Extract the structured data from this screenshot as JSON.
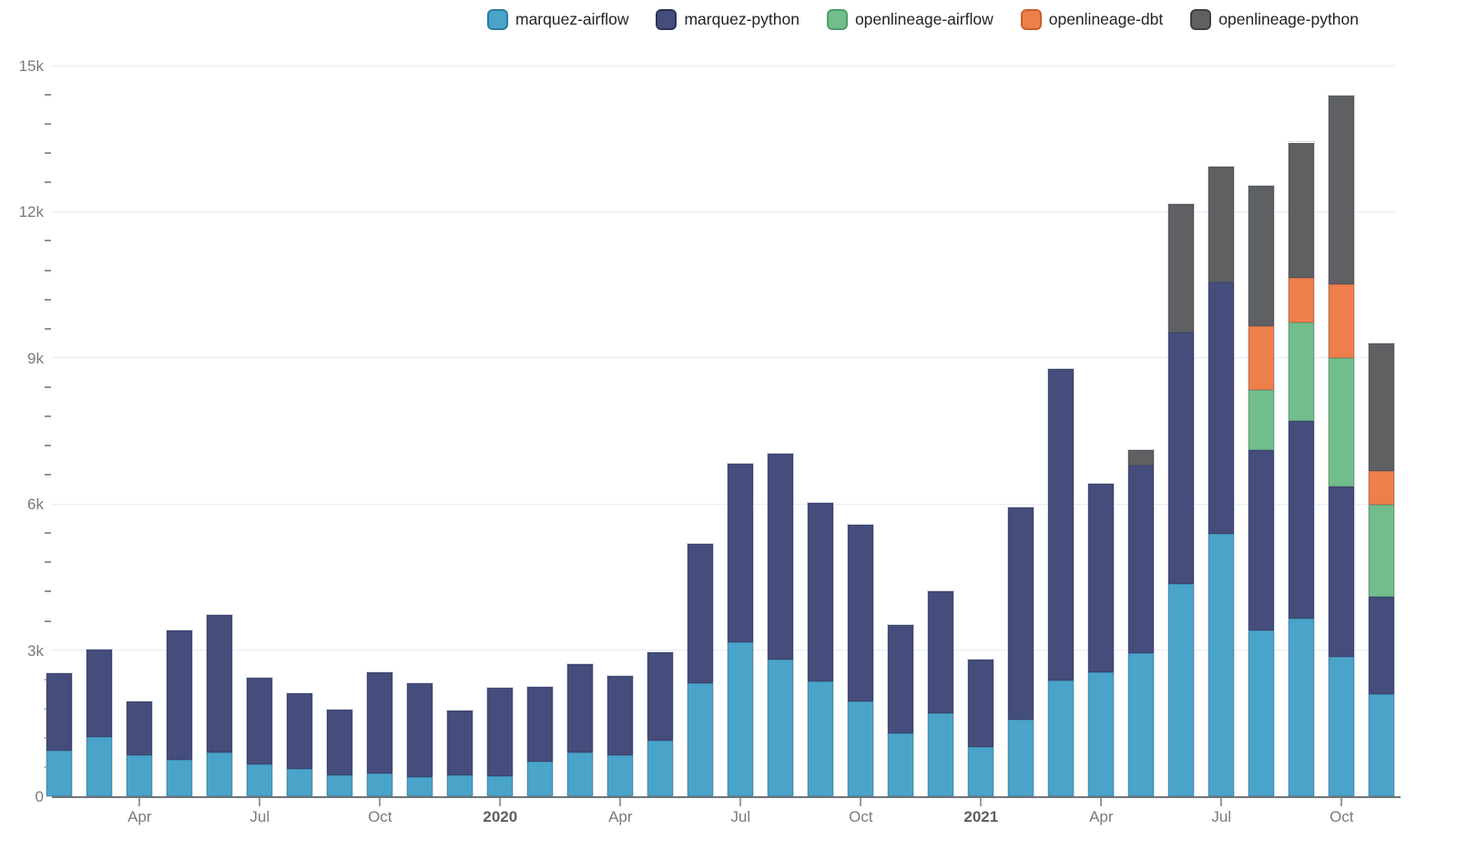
{
  "chart_data": {
    "type": "bar",
    "variant": "stacked-monthly",
    "title": "",
    "ylabel": "",
    "xlabel": "",
    "ylim": [
      0,
      15000
    ],
    "grid": "horizontal-major",
    "minor_tick_step": 600,
    "legend_position": "top-center",
    "months": [
      "2019-02",
      "2019-03",
      "2019-04",
      "2019-05",
      "2019-06",
      "2019-07",
      "2019-08",
      "2019-09",
      "2019-10",
      "2019-11",
      "2019-12",
      "2020-01",
      "2020-02",
      "2020-03",
      "2020-04",
      "2020-05",
      "2020-06",
      "2020-07",
      "2020-08",
      "2020-09",
      "2020-10",
      "2020-11",
      "2020-12",
      "2021-01",
      "2021-02",
      "2021-03",
      "2021-04",
      "2021-05",
      "2021-06",
      "2021-07",
      "2021-08",
      "2021-09",
      "2021-10",
      "2021-11"
    ],
    "series": [
      {
        "name": "marquez-airflow",
        "color": "#4AA4C9",
        "border_color": "#2B7DA0",
        "values": [
          940,
          1220,
          840,
          740,
          900,
          660,
          560,
          430,
          470,
          400,
          430,
          420,
          710,
          900,
          840,
          1150,
          2320,
          3160,
          2810,
          2350,
          1940,
          1290,
          1710,
          1010,
          1580,
          2380,
          2550,
          2940,
          4360,
          5380,
          3410,
          3650,
          2860,
          2100
        ]
      },
      {
        "name": "marquez-python",
        "color": "#444D7B",
        "border_color": "#2B3358",
        "values": [
          1590,
          1800,
          1110,
          2660,
          2830,
          1780,
          1560,
          1340,
          2080,
          1920,
          1330,
          1800,
          1530,
          1820,
          1630,
          1810,
          2860,
          3660,
          4230,
          3670,
          3630,
          2220,
          2500,
          1800,
          4350,
          6390,
          3860,
          3850,
          5160,
          5170,
          3690,
          4050,
          3490,
          2000
        ]
      },
      {
        "name": "openlineage-airflow",
        "color": "#72BD8C",
        "border_color": "#4F9C6C",
        "values": [
          0,
          0,
          0,
          0,
          0,
          0,
          0,
          0,
          0,
          0,
          0,
          0,
          0,
          0,
          0,
          0,
          0,
          0,
          0,
          0,
          0,
          0,
          0,
          0,
          0,
          0,
          0,
          0,
          0,
          0,
          1250,
          2030,
          2640,
          1890
        ]
      },
      {
        "name": "openlineage-dbt",
        "color": "#EE7F4D",
        "border_color": "#C95F2E",
        "values": [
          0,
          0,
          0,
          0,
          0,
          0,
          0,
          0,
          0,
          0,
          0,
          0,
          0,
          0,
          0,
          0,
          0,
          0,
          0,
          0,
          0,
          0,
          0,
          0,
          0,
          0,
          0,
          0,
          0,
          0,
          1310,
          920,
          1530,
          690
        ]
      },
      {
        "name": "openlineage-python",
        "color": "#5E6062",
        "border_color": "#3F4143",
        "values": [
          0,
          0,
          0,
          0,
          0,
          0,
          0,
          0,
          0,
          0,
          0,
          0,
          0,
          0,
          0,
          0,
          0,
          0,
          0,
          0,
          0,
          0,
          0,
          0,
          0,
          0,
          0,
          320,
          2630,
          2380,
          2880,
          2770,
          3870,
          2610
        ]
      }
    ],
    "y_ticks": [
      {
        "label": "0",
        "value": 0
      },
      {
        "label": "3k",
        "value": 3000
      },
      {
        "label": "6k",
        "value": 6000
      },
      {
        "label": "9k",
        "value": 9000
      },
      {
        "label": "12k",
        "value": 12000
      },
      {
        "label": "15k",
        "value": 15000
      }
    ],
    "x_ticks": [
      {
        "label": "Apr",
        "month_index": 2,
        "bold": false
      },
      {
        "label": "Jul",
        "month_index": 5,
        "bold": false
      },
      {
        "label": "Oct",
        "month_index": 8,
        "bold": false
      },
      {
        "label": "2020",
        "month_index": 11,
        "bold": true
      },
      {
        "label": "Apr",
        "month_index": 14,
        "bold": false
      },
      {
        "label": "Jul",
        "month_index": 17,
        "bold": false
      },
      {
        "label": "Oct",
        "month_index": 20,
        "bold": false
      },
      {
        "label": "2021",
        "month_index": 23,
        "bold": true
      },
      {
        "label": "Apr",
        "month_index": 26,
        "bold": false
      },
      {
        "label": "Jul",
        "month_index": 29,
        "bold": false
      },
      {
        "label": "Oct",
        "month_index": 32,
        "bold": false
      }
    ]
  }
}
